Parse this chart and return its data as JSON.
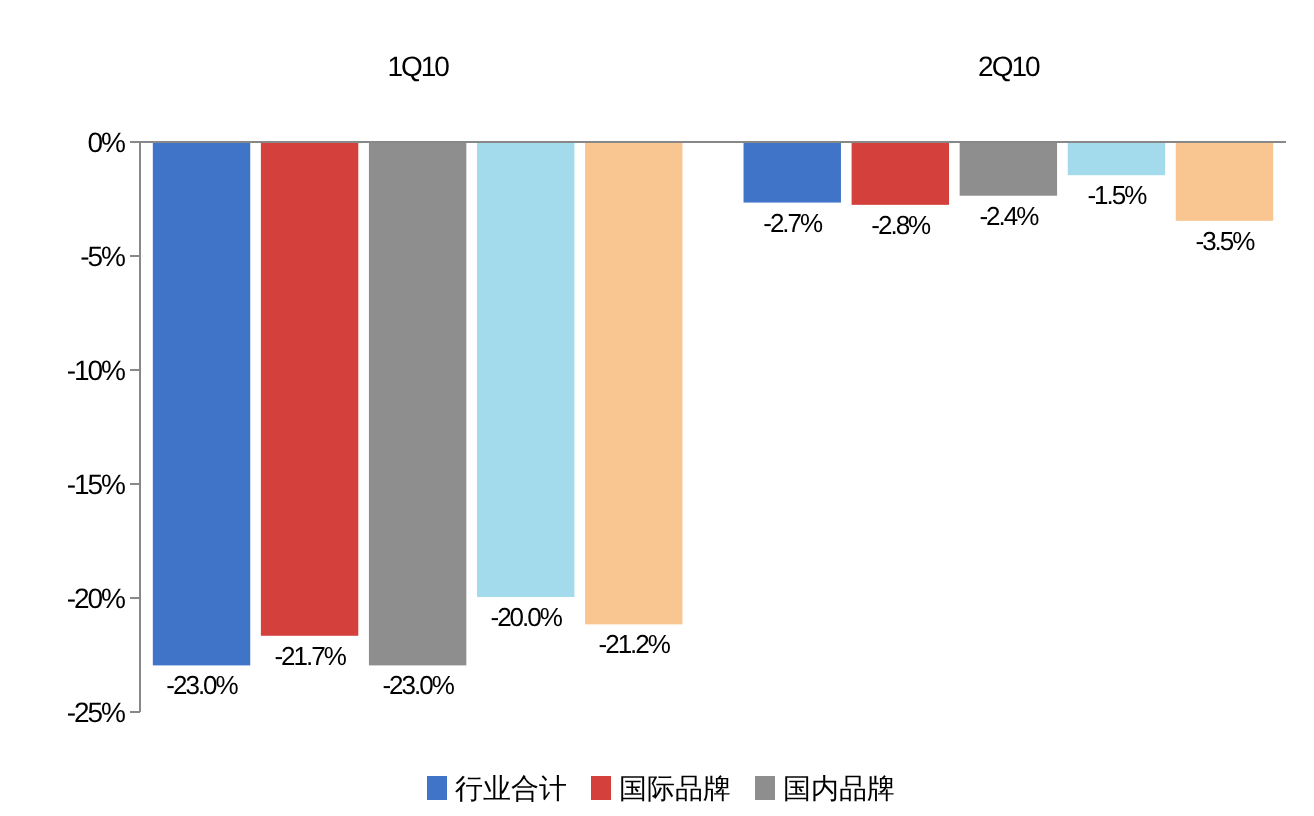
{
  "chart_data": {
    "type": "bar",
    "categories": [
      "1Q10",
      "2Q10"
    ],
    "series": [
      {
        "name": "行业合计",
        "color": "#3f74c8",
        "values": [
          -23.0,
          -2.7
        ],
        "value_labels": [
          "-23.0%",
          "-2.7%"
        ]
      },
      {
        "name": "国际品牌",
        "color": "#d4403c",
        "values": [
          -21.7,
          -2.8
        ],
        "value_labels": [
          "-21.7%",
          "-2.8%"
        ]
      },
      {
        "name": "国内品牌",
        "color": "#8e8e8e",
        "values": [
          -23.0,
          -2.4
        ],
        "value_labels": [
          "-23.0%",
          "-2.4%"
        ]
      },
      {
        "color": "#a3dbec",
        "values": [
          -20.0,
          -1.5
        ],
        "value_labels": [
          "-20.0%",
          "-1.5%"
        ]
      },
      {
        "color": "#f9c590",
        "values": [
          -21.2,
          -3.5
        ],
        "value_labels": [
          "-21.2%",
          "-3.5%"
        ]
      }
    ],
    "ylim": [
      -25,
      0
    ],
    "yticks": [
      {
        "value": 0,
        "label": "0%"
      },
      {
        "value": -5,
        "label": "-5%"
      },
      {
        "value": -10,
        "label": "-10%"
      },
      {
        "value": -15,
        "label": "-15%"
      },
      {
        "value": -20,
        "label": "-20%"
      },
      {
        "value": -25,
        "label": "-25%"
      }
    ],
    "legend": "bottom",
    "grid": false
  }
}
